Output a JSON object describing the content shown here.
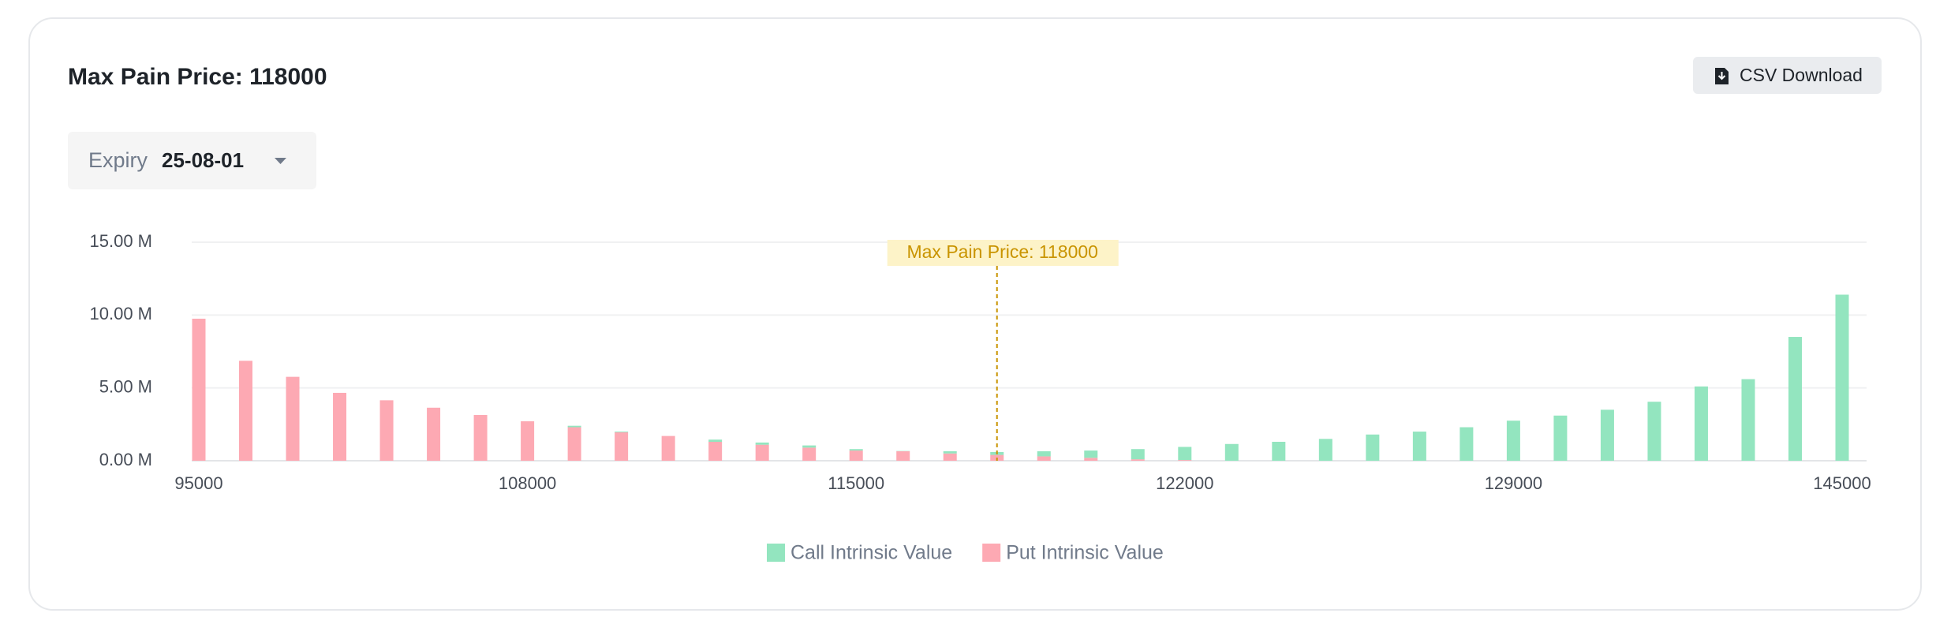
{
  "header": {
    "title": "Max Pain Price: 118000",
    "button": "CSV Download"
  },
  "filter": {
    "label": "Expiry",
    "value": "25-08-01"
  },
  "chart_data": {
    "type": "bar",
    "stacked": true,
    "categories": [
      "95000",
      null,
      null,
      null,
      null,
      null,
      null,
      "108000",
      null,
      null,
      null,
      null,
      null,
      null,
      "115000",
      null,
      null,
      null,
      null,
      null,
      null,
      "122000",
      null,
      null,
      null,
      null,
      null,
      null,
      "129000",
      null,
      null,
      null,
      null,
      null,
      null,
      "145000"
    ],
    "series": [
      {
        "name": "Call Intrinsic Value",
        "color": "#93e5bf",
        "values": [
          0,
          0,
          0,
          0,
          0,
          0,
          0,
          0,
          0.1,
          0.05,
          0,
          0.15,
          0.15,
          0.15,
          0.1,
          0.02,
          0.15,
          0.2,
          0.35,
          0.5,
          0.7,
          0.9,
          1.15,
          1.3,
          1.5,
          1.8,
          2.0,
          2.3,
          2.75,
          3.1,
          3.5,
          4.05,
          5.1,
          5.6,
          8.5,
          11.4
        ]
      },
      {
        "name": "Put Intrinsic Value",
        "color": "#fda9b3",
        "values": [
          9.75,
          6.86,
          5.76,
          4.66,
          4.15,
          3.64,
          3.14,
          2.71,
          2.3,
          1.95,
          1.7,
          1.3,
          1.1,
          0.9,
          0.7,
          0.65,
          0.5,
          0.4,
          0.3,
          0.2,
          0.1,
          0.05,
          0,
          0,
          0,
          0,
          0,
          0,
          0,
          0,
          0,
          0,
          0,
          0,
          0,
          0
        ]
      }
    ],
    "ylim": [
      0,
      15
    ],
    "yticks": [
      {
        "value": 0,
        "label": "0.00 M"
      },
      {
        "value": 5,
        "label": "5.00 M"
      },
      {
        "value": 10,
        "label": "10.00 M"
      },
      {
        "value": 15,
        "label": "15.00 M"
      }
    ],
    "grid": true,
    "legend": "bottom",
    "annotation": {
      "text": "Max Pain Price: 118000",
      "category_index": 17
    }
  }
}
